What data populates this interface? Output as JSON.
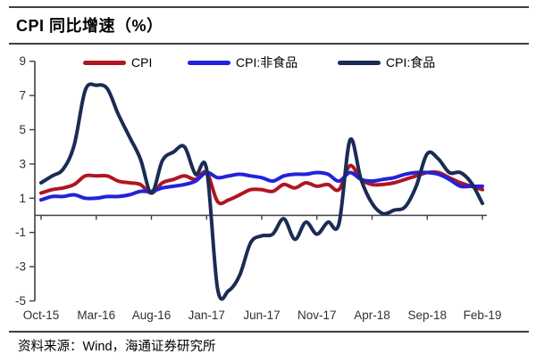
{
  "header": {
    "title": "CPI 同比增速（%）"
  },
  "footer": {
    "source": "资料来源：Wind，海通证券研究所"
  },
  "chart_data": {
    "type": "line",
    "title": "CPI 同比增速（%）",
    "xlabel": "",
    "ylabel": "",
    "ylim": [
      -5,
      9
    ],
    "yticks": [
      9,
      7,
      5,
      3,
      1,
      -1,
      -3,
      -5
    ],
    "grid": false,
    "legend_position": "top",
    "axis_color": "#3f3f3f",
    "tick_label_color": "#303030",
    "x": [
      "Oct-15",
      "Nov-15",
      "Dec-15",
      "Jan-16",
      "Feb-16",
      "Mar-16",
      "Apr-16",
      "May-16",
      "Jun-16",
      "Jul-16",
      "Aug-16",
      "Sep-16",
      "Oct-16",
      "Nov-16",
      "Dec-16",
      "Jan-17",
      "Feb-17",
      "Mar-17",
      "Apr-17",
      "May-17",
      "Jun-17",
      "Jul-17",
      "Aug-17",
      "Sep-17",
      "Oct-17",
      "Nov-17",
      "Dec-17",
      "Jan-18",
      "Feb-18",
      "Mar-18",
      "Apr-18",
      "May-18",
      "Jun-18",
      "Jul-18",
      "Aug-18",
      "Sep-18",
      "Oct-18",
      "Nov-18",
      "Dec-18",
      "Jan-19",
      "Feb-19"
    ],
    "x_tick_indices": [
      0,
      5,
      10,
      15,
      20,
      25,
      30,
      35,
      40
    ],
    "x_tick_labels": [
      "Oct-15",
      "Mar-16",
      "Aug-16",
      "Jan-17",
      "Jun-17",
      "Nov-17",
      "Apr-18",
      "Sep-18",
      "Feb-19"
    ],
    "series": [
      {
        "name": "CPI",
        "color": "#b11520",
        "values": [
          1.3,
          1.5,
          1.6,
          1.8,
          2.3,
          2.3,
          2.3,
          2.0,
          1.9,
          1.8,
          1.3,
          1.9,
          2.1,
          2.3,
          2.1,
          2.5,
          0.8,
          0.9,
          1.2,
          1.5,
          1.5,
          1.4,
          1.8,
          1.6,
          1.9,
          1.7,
          1.8,
          1.5,
          2.9,
          2.1,
          1.8,
          1.8,
          1.9,
          2.1,
          2.3,
          2.5,
          2.5,
          2.2,
          1.9,
          1.7,
          1.5
        ]
      },
      {
        "name": "CPI:非食品",
        "color": "#2222dd",
        "values": [
          0.9,
          1.1,
          1.1,
          1.2,
          1.0,
          1.0,
          1.1,
          1.1,
          1.2,
          1.4,
          1.4,
          1.6,
          1.7,
          1.8,
          2.0,
          2.5,
          2.2,
          2.3,
          2.4,
          2.3,
          2.2,
          2.0,
          2.3,
          2.4,
          2.4,
          2.5,
          2.4,
          2.0,
          2.5,
          2.1,
          2.0,
          2.1,
          2.2,
          2.4,
          2.5,
          2.5,
          2.4,
          2.1,
          1.7,
          1.7,
          1.7
        ]
      },
      {
        "name": "CPI:食品",
        "color": "#1a2c55",
        "values": [
          1.9,
          2.3,
          2.7,
          4.1,
          7.3,
          7.6,
          7.4,
          5.9,
          4.6,
          3.3,
          1.3,
          3.2,
          3.7,
          4.0,
          2.4,
          2.7,
          -4.3,
          -4.4,
          -3.5,
          -1.6,
          -1.2,
          -1.1,
          -0.2,
          -1.4,
          -0.4,
          -1.1,
          -0.4,
          -0.5,
          4.4,
          2.1,
          0.7,
          0.1,
          0.3,
          0.5,
          1.7,
          3.6,
          3.3,
          2.5,
          2.5,
          1.9,
          0.7
        ]
      }
    ]
  }
}
